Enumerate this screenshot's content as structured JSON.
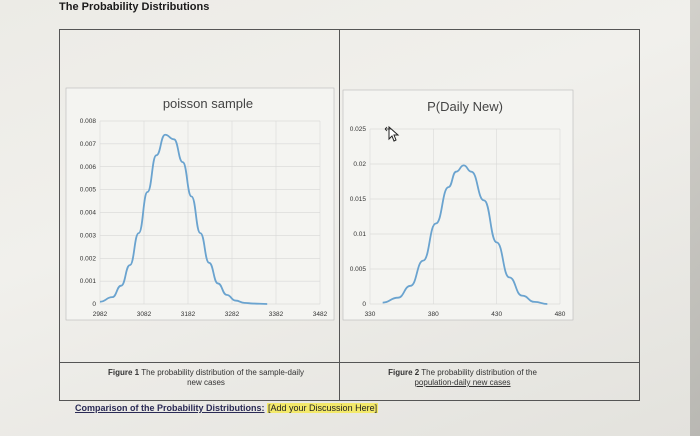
{
  "document": {
    "title": "The Probability Distributions"
  },
  "chart_data": [
    {
      "type": "line",
      "title": "poisson sample",
      "x": [
        2982,
        3082,
        3182,
        3282,
        3382,
        3482
      ],
      "xticks": [
        "2982",
        "3082",
        "3182",
        "3282",
        "3382",
        "3482"
      ],
      "yticks": [
        "0",
        "0.001",
        "0.002",
        "0.003",
        "0.004",
        "0.005",
        "0.006",
        "0.007",
        "0.008"
      ],
      "ylim": [
        0,
        0.008
      ],
      "xlim": [
        2982,
        3482
      ],
      "series": [
        {
          "x": [
            2982,
            3010,
            3030,
            3050,
            3070,
            3090,
            3110,
            3130,
            3150,
            3170,
            3190,
            3210,
            3230,
            3250,
            3270,
            3290,
            3310,
            3330,
            3362
          ],
          "values": [
            0.0001,
            0.0003,
            0.0008,
            0.0017,
            0.0031,
            0.0049,
            0.0065,
            0.0074,
            0.0072,
            0.0062,
            0.0047,
            0.0031,
            0.0018,
            0.0009,
            0.0004,
            0.00015,
            5e-05,
            2e-05,
            0.0
          ]
        }
      ],
      "grid": true,
      "color": "#6aa3cf"
    },
    {
      "type": "line",
      "title": "P(Daily New)",
      "x": [
        330,
        380,
        430,
        480
      ],
      "xticks": [
        "330",
        "380",
        "430",
        "480"
      ],
      "yticks": [
        "0",
        "0.005",
        "0.01",
        "0.015",
        "0.02",
        "0.025"
      ],
      "ylim": [
        0,
        0.025
      ],
      "xlim": [
        330,
        480
      ],
      "series": [
        {
          "x": [
            340,
            352,
            362,
            372,
            382,
            392,
            398,
            404,
            410,
            420,
            430,
            440,
            450,
            460,
            470
          ],
          "values": [
            0.0002,
            0.0009,
            0.0026,
            0.0062,
            0.0115,
            0.0167,
            0.0189,
            0.0198,
            0.0189,
            0.0148,
            0.0088,
            0.0038,
            0.0012,
            0.0003,
            0.0
          ]
        }
      ],
      "grid": true,
      "color": "#6aa3cf"
    }
  ],
  "captions": {
    "fig1_label": "Figure 1",
    "fig1_text_a": " The probability distribution of the sample-daily",
    "fig1_text_b": "new cases",
    "fig2_label": "Figure 2",
    "fig2_text_a": " The probability distribution of the",
    "fig2_text_b": "population-daily new cases"
  },
  "comparison": {
    "label": "Comparison of the Probability Distributions:",
    "placeholder": "[Add your Discussion Here]"
  }
}
